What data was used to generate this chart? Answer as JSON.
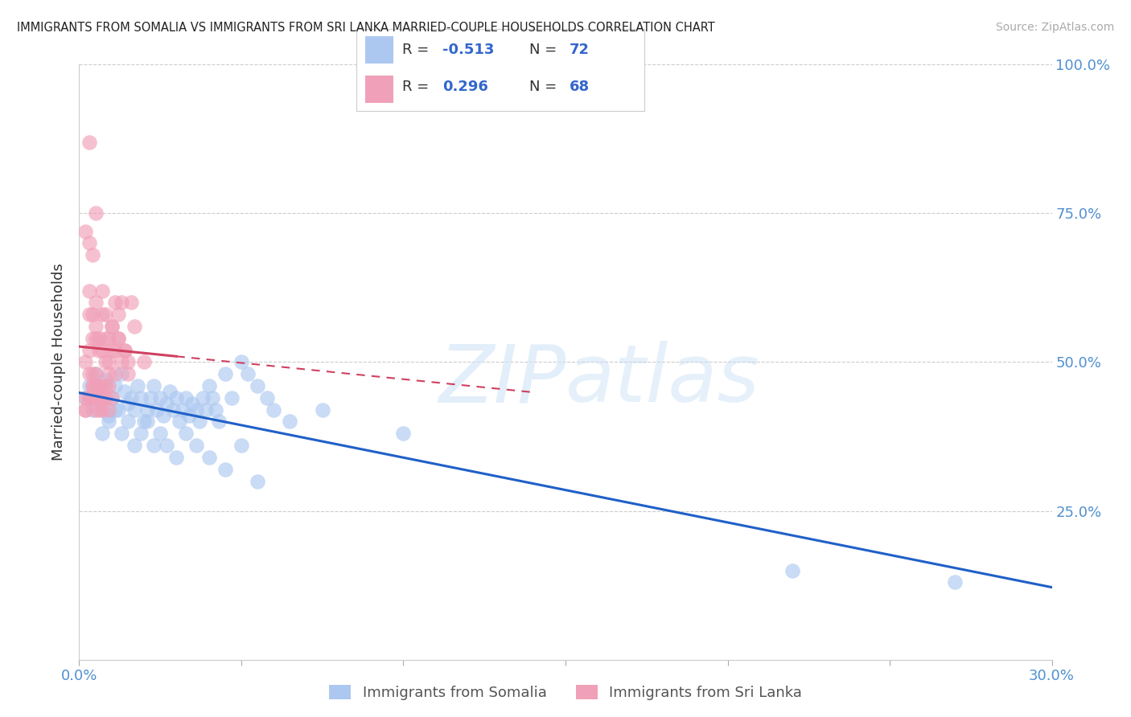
{
  "title": "IMMIGRANTS FROM SOMALIA VS IMMIGRANTS FROM SRI LANKA MARRIED-COUPLE HOUSEHOLDS CORRELATION CHART",
  "source": "Source: ZipAtlas.com",
  "ylabel": "Married-couple Households",
  "xlim": [
    0.0,
    0.3
  ],
  "ylim": [
    0.0,
    1.0
  ],
  "somalia_R": -0.513,
  "somalia_N": 72,
  "srilanka_R": 0.296,
  "srilanka_N": 68,
  "somalia_color": "#adc8f0",
  "srilanka_color": "#f0a0b8",
  "somalia_line_color": "#2060c8",
  "srilanka_line_color": "#d04060",
  "watermark_color": "#d0e4f5",
  "background_color": "#ffffff",
  "somalia_x": [
    0.002,
    0.003,
    0.004,
    0.005,
    0.006,
    0.007,
    0.008,
    0.009,
    0.01,
    0.011,
    0.012,
    0.013,
    0.014,
    0.015,
    0.016,
    0.017,
    0.018,
    0.019,
    0.02,
    0.021,
    0.022,
    0.023,
    0.024,
    0.025,
    0.026,
    0.027,
    0.028,
    0.029,
    0.03,
    0.031,
    0.032,
    0.033,
    0.034,
    0.035,
    0.036,
    0.037,
    0.038,
    0.039,
    0.04,
    0.041,
    0.042,
    0.043,
    0.045,
    0.047,
    0.05,
    0.052,
    0.055,
    0.058,
    0.06,
    0.065,
    0.007,
    0.009,
    0.011,
    0.013,
    0.015,
    0.017,
    0.019,
    0.021,
    0.023,
    0.025,
    0.027,
    0.03,
    0.033,
    0.036,
    0.04,
    0.045,
    0.05,
    0.055,
    0.075,
    0.1,
    0.22,
    0.27
  ],
  "somalia_y": [
    0.44,
    0.46,
    0.42,
    0.48,
    0.45,
    0.43,
    0.47,
    0.41,
    0.44,
    0.46,
    0.42,
    0.48,
    0.45,
    0.43,
    0.44,
    0.42,
    0.46,
    0.44,
    0.4,
    0.42,
    0.44,
    0.46,
    0.42,
    0.44,
    0.41,
    0.43,
    0.45,
    0.42,
    0.44,
    0.4,
    0.42,
    0.44,
    0.41,
    0.43,
    0.42,
    0.4,
    0.44,
    0.42,
    0.46,
    0.44,
    0.42,
    0.4,
    0.48,
    0.44,
    0.5,
    0.48,
    0.46,
    0.44,
    0.42,
    0.4,
    0.38,
    0.4,
    0.42,
    0.38,
    0.4,
    0.36,
    0.38,
    0.4,
    0.36,
    0.38,
    0.36,
    0.34,
    0.38,
    0.36,
    0.34,
    0.32,
    0.36,
    0.3,
    0.42,
    0.38,
    0.15,
    0.13
  ],
  "srilanka_x": [
    0.002,
    0.003,
    0.004,
    0.005,
    0.006,
    0.007,
    0.008,
    0.009,
    0.01,
    0.011,
    0.012,
    0.013,
    0.014,
    0.015,
    0.016,
    0.017,
    0.003,
    0.004,
    0.005,
    0.006,
    0.007,
    0.008,
    0.009,
    0.01,
    0.011,
    0.012,
    0.013,
    0.014,
    0.015,
    0.003,
    0.004,
    0.005,
    0.006,
    0.007,
    0.008,
    0.009,
    0.01,
    0.011,
    0.012,
    0.002,
    0.003,
    0.004,
    0.005,
    0.006,
    0.007,
    0.008,
    0.009,
    0.01,
    0.002,
    0.003,
    0.004,
    0.005,
    0.006,
    0.007,
    0.008,
    0.009,
    0.002,
    0.003,
    0.004,
    0.005,
    0.006,
    0.007,
    0.002,
    0.003,
    0.004,
    0.005,
    0.003,
    0.02
  ],
  "srilanka_y": [
    0.5,
    0.52,
    0.48,
    0.54,
    0.46,
    0.52,
    0.5,
    0.48,
    0.56,
    0.52,
    0.54,
    0.5,
    0.52,
    0.48,
    0.6,
    0.56,
    0.58,
    0.54,
    0.56,
    0.52,
    0.58,
    0.54,
    0.5,
    0.52,
    0.48,
    0.54,
    0.6,
    0.52,
    0.5,
    0.62,
    0.58,
    0.6,
    0.54,
    0.62,
    0.58,
    0.54,
    0.56,
    0.6,
    0.58,
    0.44,
    0.48,
    0.44,
    0.46,
    0.42,
    0.44,
    0.46,
    0.42,
    0.44,
    0.42,
    0.44,
    0.46,
    0.42,
    0.44,
    0.42,
    0.44,
    0.46,
    0.42,
    0.44,
    0.46,
    0.48,
    0.44,
    0.46,
    0.72,
    0.7,
    0.68,
    0.75,
    0.87,
    0.5
  ]
}
